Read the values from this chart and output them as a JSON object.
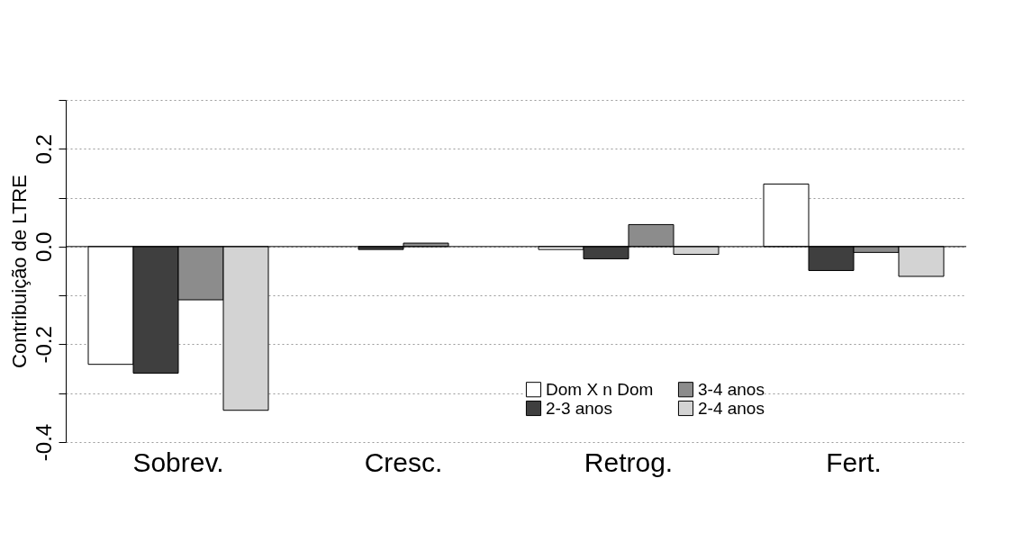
{
  "chart_data": {
    "type": "bar",
    "ylabel": "Contribuição de LTRE",
    "categories": [
      "Sobrev.",
      "Cresc.",
      "Retrog.",
      "Fert."
    ],
    "series": [
      {
        "name": "Dom X n Dom",
        "color": "#ffffff",
        "values": [
          -0.241,
          null,
          -0.006,
          0.128
        ]
      },
      {
        "name": "2-3 anos",
        "color": "#3f3f3f",
        "values": [
          -0.259,
          -0.006,
          -0.025,
          -0.049
        ]
      },
      {
        "name": "3-4 anos",
        "color": "#8c8c8c",
        "values": [
          -0.109,
          0.007,
          0.045,
          -0.012
        ]
      },
      {
        "name": "2-4 anos",
        "color": "#d3d3d3",
        "values": [
          -0.335,
          null,
          -0.016,
          -0.061
        ]
      }
    ],
    "ylim": [
      -0.4,
      0.3
    ],
    "yticks": [
      {
        "value": 0.3,
        "label": null
      },
      0.2,
      {
        "value": 0.1,
        "label": null
      },
      {
        "value": 0,
        "label": "0.0"
      },
      {
        "value": -0.1,
        "label": null
      },
      -0.2,
      {
        "value": -0.3,
        "label": null
      },
      -0.4
    ],
    "ref_lines": [
      {
        "axis": "y",
        "value": 0
      }
    ],
    "grid": "y",
    "legend": "bottom right"
  }
}
